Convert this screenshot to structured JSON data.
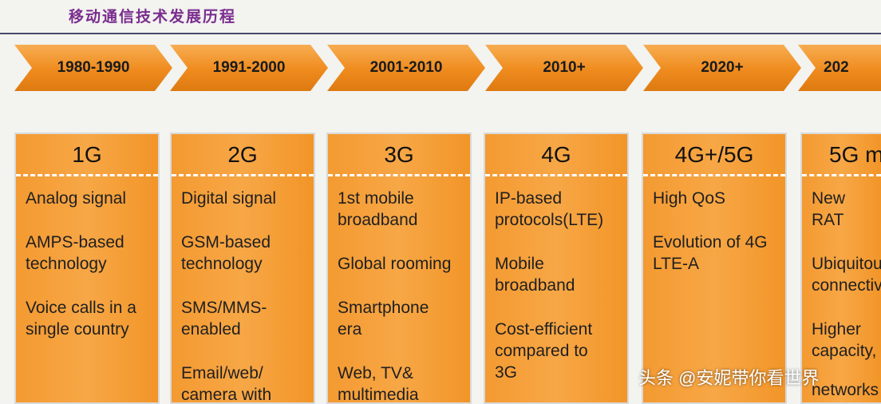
{
  "title": "移动通信技术发展历程",
  "columns": [
    {
      "period": "1980-1990",
      "generation": "1G",
      "items": [
        "Analog signal",
        "AMPS-based\ntechnology",
        "Voice calls in a\nsingle country"
      ]
    },
    {
      "period": "1991-2000",
      "generation": "2G",
      "items": [
        "Digital signal",
        "GSM-based\ntechnology",
        "SMS/MMS-\nenabled",
        "Email/web/\ncamera with"
      ]
    },
    {
      "period": "2001-2010",
      "generation": "3G",
      "items": [
        "1st mobile\nbroadband",
        "Global rooming",
        "Smartphone\nera",
        "Web, TV&\nmultimedia"
      ]
    },
    {
      "period": "2010+",
      "generation": "4G",
      "items": [
        "IP-based\nprotocols(LTE)",
        "Mobile\nbroadband",
        "Cost-efficient\ncompared to\n3G"
      ]
    },
    {
      "period": "2020+",
      "generation": "4G+/5G",
      "items": [
        "High QoS",
        "Evolution of 4G\nLTE-A"
      ]
    },
    {
      "period": "202",
      "generation": "5G m",
      "items": [
        "New RAT",
        "Ubiquitou\nconnectiv",
        "Higher\ncapacity,",
        "networks"
      ]
    }
  ],
  "watermark": "头条 @安妮带你看世界"
}
